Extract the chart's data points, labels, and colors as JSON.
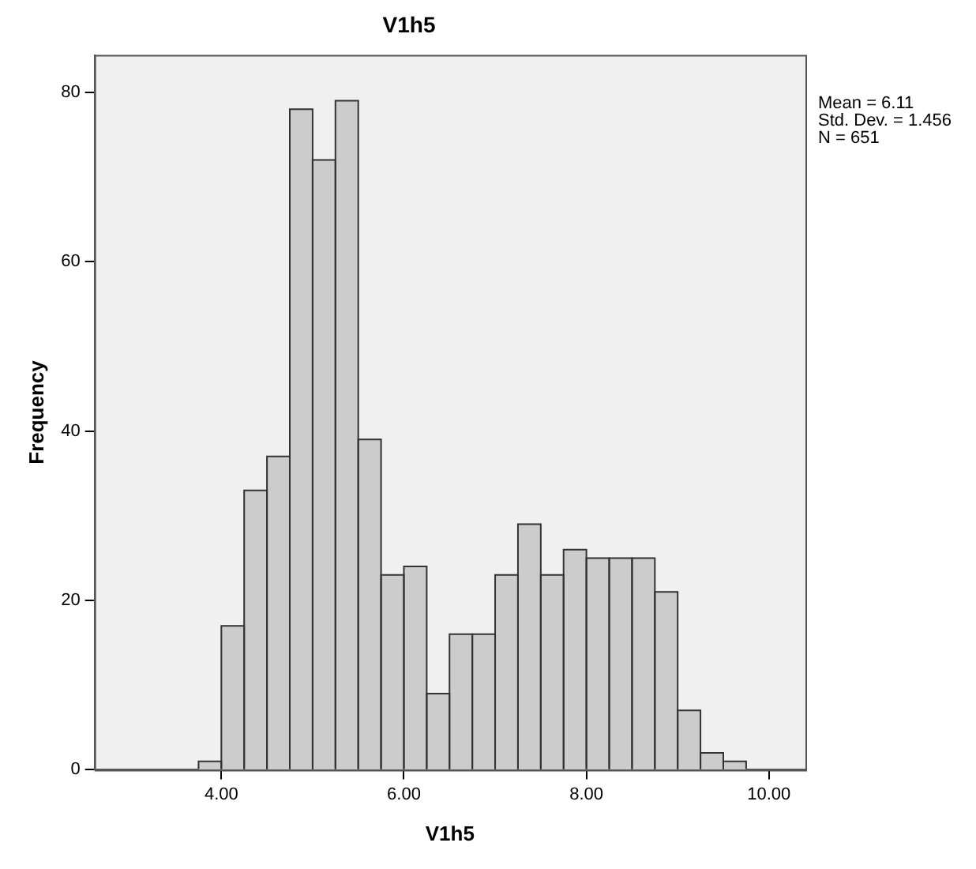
{
  "chart_data": {
    "type": "histogram",
    "title": "V1h5",
    "xlabel": "V1h5",
    "ylabel": "Frequency",
    "bins": [
      3.75,
      4.0,
      4.25,
      4.5,
      4.75,
      5.0,
      5.25,
      5.5,
      5.75,
      6.0,
      6.25,
      6.5,
      6.75,
      7.0,
      7.25,
      7.5,
      7.75,
      8.0,
      8.25,
      8.5,
      8.75,
      9.0,
      9.25,
      9.5,
      9.75
    ],
    "values": [
      1,
      17,
      33,
      37,
      78,
      72,
      79,
      39,
      23,
      24,
      9,
      16,
      16,
      23,
      29,
      23,
      26,
      25,
      25,
      25,
      21,
      7,
      2,
      1
    ],
    "color": "#cccccc",
    "xlim": [
      2.61,
      10.4
    ],
    "xticks": [
      {
        "value": 4,
        "label": "4.00"
      },
      {
        "value": 6,
        "label": "6.00"
      },
      {
        "value": 8,
        "label": "8.00"
      },
      {
        "value": 10,
        "label": "10.00"
      }
    ],
    "ylim": [
      0,
      84.4
    ],
    "yticks": [
      0,
      20,
      40,
      60,
      80
    ],
    "annotations": [
      "Mean = 6.11",
      "Std. Dev. = 1.456",
      "N = 651"
    ],
    "grid": false,
    "legend": false
  }
}
